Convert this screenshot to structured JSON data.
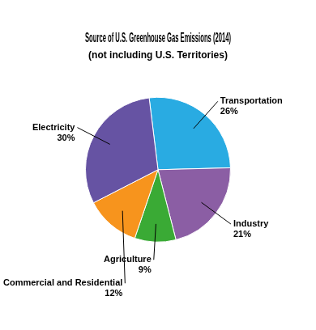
{
  "chart_data": {
    "type": "pie",
    "title": "Source of U.S. Greenhouse Gas Emissions (2014)",
    "subtitle": "(not including U.S. Territories)",
    "categories": [
      "Transportation",
      "Industry",
      "Agriculture",
      "Commercial and Residential",
      "Electricity"
    ],
    "values": [
      26,
      21,
      9,
      12,
      30
    ],
    "value_labels": [
      "26%",
      "21%",
      "9%",
      "12%",
      "30%"
    ],
    "colors": [
      "#29ABE2",
      "#8B5EA4",
      "#3AAA35",
      "#F7941D",
      "#6653A3"
    ],
    "data_labels": true
  }
}
